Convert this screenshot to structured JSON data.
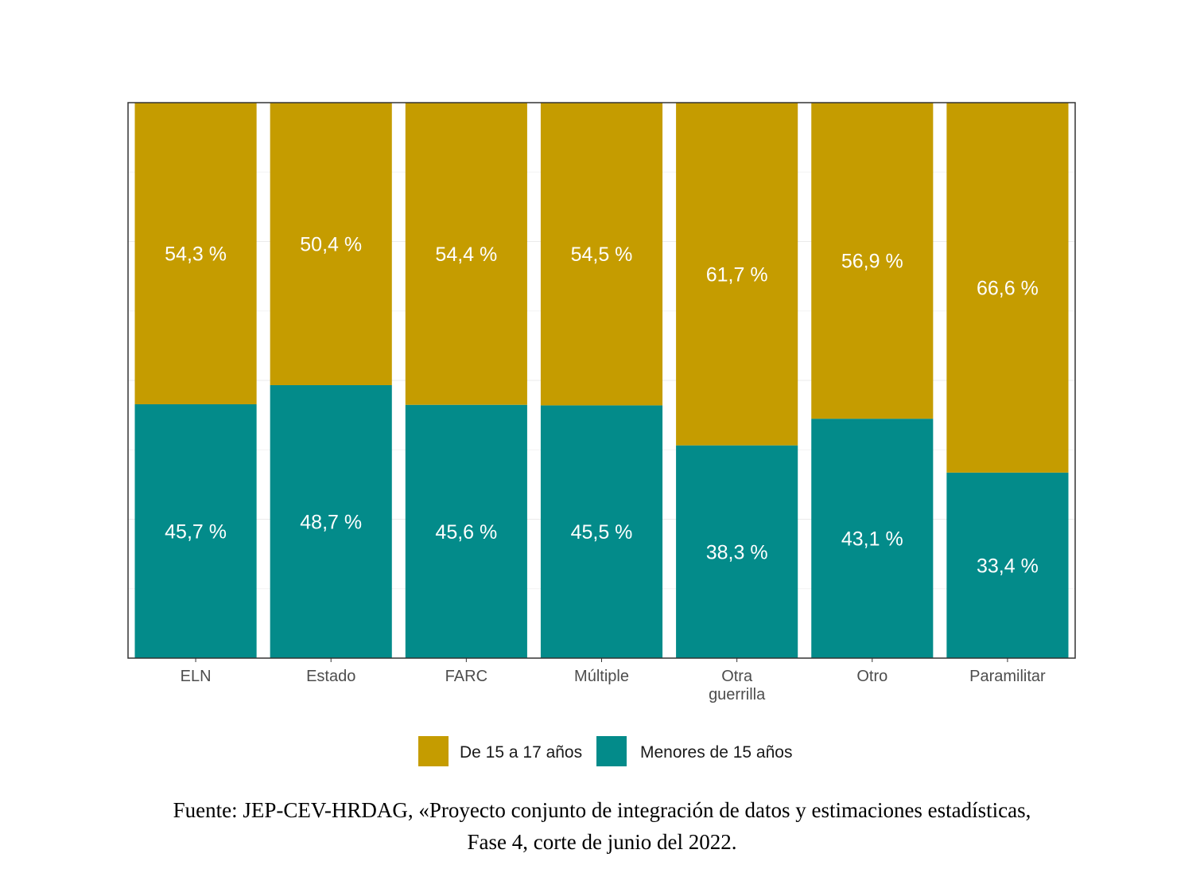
{
  "chart_data": {
    "type": "bar",
    "stacked": true,
    "normalized": true,
    "categories": [
      "ELN",
      "Estado",
      "FARC",
      "Múltiple",
      "Otra guerrilla",
      "Otro",
      "Paramilitar"
    ],
    "category_labels": [
      [
        "ELN"
      ],
      [
        "Estado"
      ],
      [
        "FARC"
      ],
      [
        "Múltiple"
      ],
      [
        "Otra",
        "guerrilla"
      ],
      [
        "Otro"
      ],
      [
        "Paramilitar"
      ]
    ],
    "series": [
      {
        "name": "Menores de 15 años",
        "color": "#038b8a",
        "values": [
          45.7,
          48.7,
          45.6,
          45.5,
          38.3,
          43.1,
          33.4
        ],
        "labels": [
          "45,7 %",
          "48,7 %",
          "45,6 %",
          "45,5 %",
          "38,3 %",
          "43,1 %",
          "33,4 %"
        ]
      },
      {
        "name": "De 15 a 17 años",
        "color": "#c59c00",
        "values": [
          54.3,
          50.4,
          54.4,
          54.5,
          61.7,
          56.9,
          66.6
        ],
        "labels": [
          "54,3 %",
          "50,4 %",
          "54,4 %",
          "54,5 %",
          "61,7 %",
          "56,9 %",
          "66,6 %"
        ]
      }
    ],
    "legend": [
      {
        "label": "De 15 a 17 años",
        "color": "#c59c00"
      },
      {
        "label": "Menores de 15 años",
        "color": "#038b8a"
      }
    ],
    "legend_position": "bottom",
    "ylim": [
      0,
      100
    ],
    "grid": true,
    "title": "",
    "xlabel": "",
    "ylabel": ""
  },
  "source": {
    "line1": "Fuente: JEP-CEV-HRDAG, «Proyecto conjunto de integración de datos y estimaciones estadísticas,",
    "line2": "Fase 4, corte de junio del 2022."
  }
}
